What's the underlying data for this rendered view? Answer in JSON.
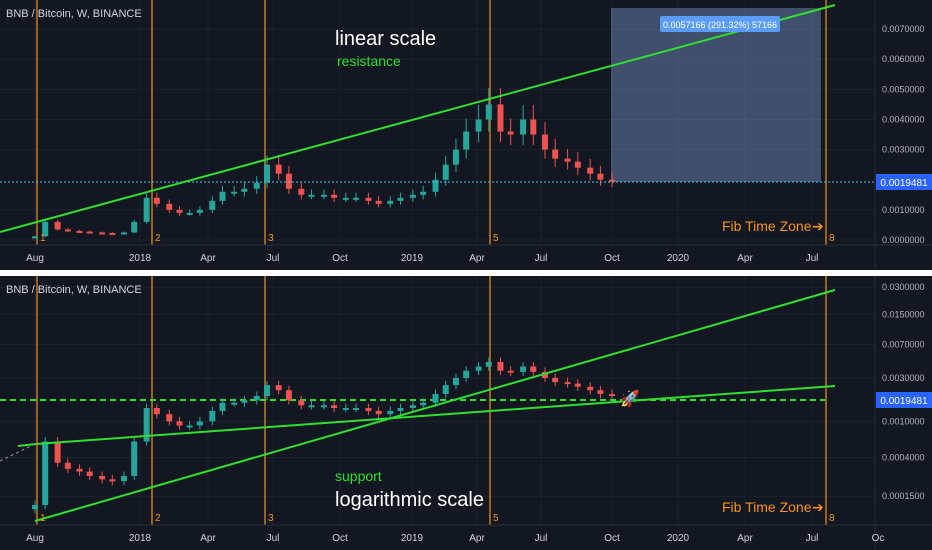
{
  "symbol": "BNB / Bitcoin, W, BINANCE",
  "colors": {
    "background": "#131722",
    "fib_line": "#f7931a",
    "trendline": "#2fe02f",
    "candle_up": "#26a69a",
    "candle_down": "#ef5350",
    "price_marker": "#2962ff",
    "measure_box": "rgba(120,150,200,0.45)",
    "measure_label_bg": "#5b9cf6"
  },
  "x_axis_labels": [
    "Aug",
    "2018",
    "Apr",
    "Jul",
    "Oct",
    "2019",
    "Apr",
    "Jul",
    "Oct",
    "2020",
    "Apr",
    "Jul"
  ],
  "bottom_extra_x_label": "Oc",
  "fib_time_zone": {
    "label": "Fib Time Zone",
    "arrow": "➔",
    "numbers": [
      "1",
      "2",
      "3",
      "5",
      "8"
    ]
  },
  "current_price": "0.0019481",
  "top_chart": {
    "scale_label": "linear scale",
    "annotation": "resistance",
    "measure_label": "0.0057166 (291.32%) 57166",
    "y_ticks": [
      "0.0070000",
      "0.0060000",
      "0.0050000",
      "0.0040000",
      "0.0030000",
      "0.0010000",
      "0.0000000"
    ]
  },
  "bottom_chart": {
    "scale_label": "logarithmic scale",
    "annotation": "support",
    "y_ticks": [
      "0.0300000",
      "0.0150000",
      "0.0070000",
      "0.0030000",
      "0.0010000",
      "0.0004000",
      "0.0001500"
    ]
  },
  "chart_data": {
    "type": "candlestick",
    "series": [
      {
        "x": [
          "2017-08-01",
          "2017-08-15",
          "2017-09-01",
          "2017-09-15",
          "2017-10-01",
          "2017-10-15",
          "2017-11-01",
          "2017-11-15",
          "2017-12-01",
          "2017-12-15",
          "2018-01-01",
          "2018-01-15",
          "2018-02-01",
          "2018-02-15",
          "2018-03-01",
          "2018-03-15",
          "2018-04-01",
          "2018-04-15",
          "2018-05-01",
          "2018-05-15",
          "2018-06-01",
          "2018-06-15",
          "2018-07-01",
          "2018-07-15",
          "2018-08-01",
          "2018-08-15",
          "2018-09-01",
          "2018-09-15",
          "2018-10-01",
          "2018-10-15",
          "2018-11-01",
          "2018-11-15",
          "2018-12-01",
          "2018-12-15",
          "2019-01-01",
          "2019-01-15",
          "2019-02-01",
          "2019-02-15",
          "2019-03-01",
          "2019-03-15",
          "2019-04-01",
          "2019-04-15",
          "2019-05-01",
          "2019-05-15",
          "2019-06-01",
          "2019-06-15",
          "2019-07-01",
          "2019-07-15",
          "2019-08-01",
          "2019-08-15",
          "2019-09-01",
          "2019-09-15",
          "2019-10-01"
        ],
        "values": [
          0.00012,
          0.0006,
          0.00035,
          0.0003,
          0.00028,
          0.00025,
          0.00023,
          0.00022,
          0.00025,
          0.0006,
          0.0014,
          0.0012,
          0.001,
          0.0009,
          0.0009,
          0.001,
          0.0013,
          0.0016,
          0.0016,
          0.0017,
          0.0019,
          0.0025,
          0.0022,
          0.0017,
          0.0015,
          0.0015,
          0.0015,
          0.0014,
          0.0014,
          0.0014,
          0.0013,
          0.0012,
          0.0013,
          0.0014,
          0.0015,
          0.0016,
          0.002,
          0.0025,
          0.003,
          0.0036,
          0.004,
          0.0045,
          0.0036,
          0.0035,
          0.004,
          0.0035,
          0.003,
          0.0027,
          0.0026,
          0.0024,
          0.0022,
          0.002,
          0.0019481
        ]
      }
    ],
    "current_value": 0.0019481,
    "measure_range": {
      "value": 0.0057166,
      "percent": 291.32
    },
    "fib_time_zone_dates": [
      "2017-08-01",
      "2018-01-01",
      "2018-06-15",
      "2019-04-15",
      "2020-07-15"
    ],
    "top_ylim": [
      0,
      0.0077
    ],
    "bottom_ylim": [
      8e-05,
      0.035
    ],
    "top_yscale": "linear",
    "bottom_yscale": "log"
  }
}
